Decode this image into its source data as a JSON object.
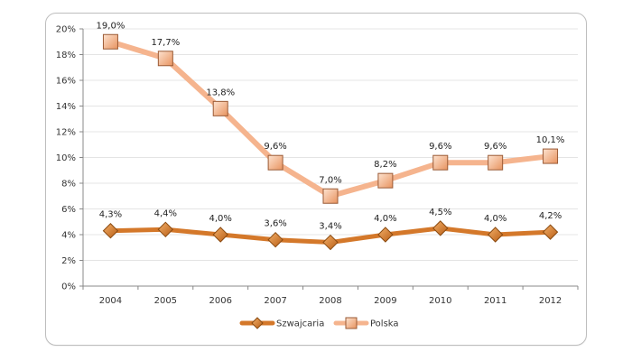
{
  "chart_data": {
    "type": "line",
    "categories": [
      "2004",
      "2005",
      "2006",
      "2007",
      "2008",
      "2009",
      "2010",
      "2011",
      "2012"
    ],
    "ylim": [
      0,
      20
    ],
    "yticks": [
      "0%",
      "2%",
      "4%",
      "6%",
      "8%",
      "10%",
      "12%",
      "14%",
      "16%",
      "18%",
      "20%"
    ],
    "grid": true,
    "legend_position": "bottom",
    "series": [
      {
        "name": "Szwajcaria",
        "values": [
          4.3,
          4.4,
          4.0,
          3.6,
          3.4,
          4.0,
          4.5,
          4.0,
          4.2
        ],
        "labels": [
          "4,3%",
          "4,4%",
          "4,0%",
          "3,6%",
          "3,4%",
          "4,0%",
          "4,5%",
          "4,0%",
          "4,2%"
        ],
        "color": "#d4782a",
        "marker": "diamond"
      },
      {
        "name": "Polska",
        "values": [
          19.0,
          17.7,
          13.8,
          9.6,
          7.0,
          8.2,
          9.6,
          9.6,
          10.1
        ],
        "labels": [
          "19,0%",
          "17,7%",
          "13,8%",
          "9,6%",
          "7,0%",
          "8,2%",
          "9,6%",
          "9,6%",
          "10,1%"
        ],
        "color": "#f5b48e",
        "marker": "square"
      }
    ]
  }
}
